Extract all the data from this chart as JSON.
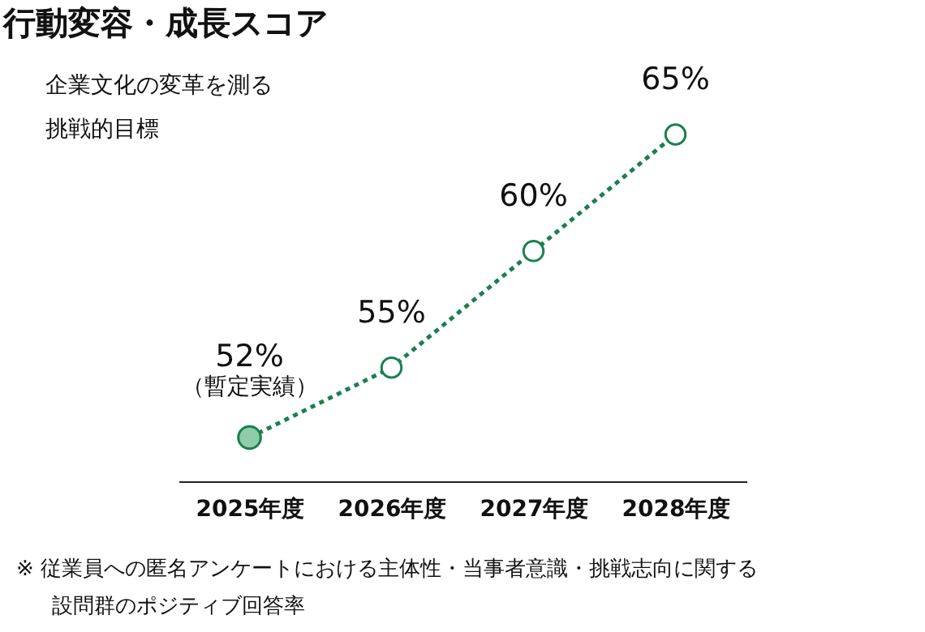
{
  "chart_data": {
    "type": "line",
    "title": "行動変容・成長スコア",
    "categories": [
      "2025年度",
      "2026年度",
      "2027年度",
      "2028年度"
    ],
    "series": [
      {
        "color": "#1a8050",
        "values": [
          52,
          55,
          60,
          65
        ],
        "value_labels": [
          "52%",
          "55%",
          "60%",
          "65%"
        ]
      },
      {
        "type": "scatter",
        "color": "#8fcca8",
        "values": [
          52,
          null,
          null,
          null
        ]
      }
    ],
    "tick_labels": "x",
    "marker": "circle",
    "line_style": "dotted",
    "annotations": [
      "企業文化の変革を測る",
      "挑戦的目標",
      {
        "text": "（暫定実績）",
        "x": "2025年度",
        "y": 52
      },
      "※ 従業員への匿名アンケートにおける主体性・当事者意識・挑戦志向に関する",
      "設問群のポジティブ回答率"
    ]
  }
}
